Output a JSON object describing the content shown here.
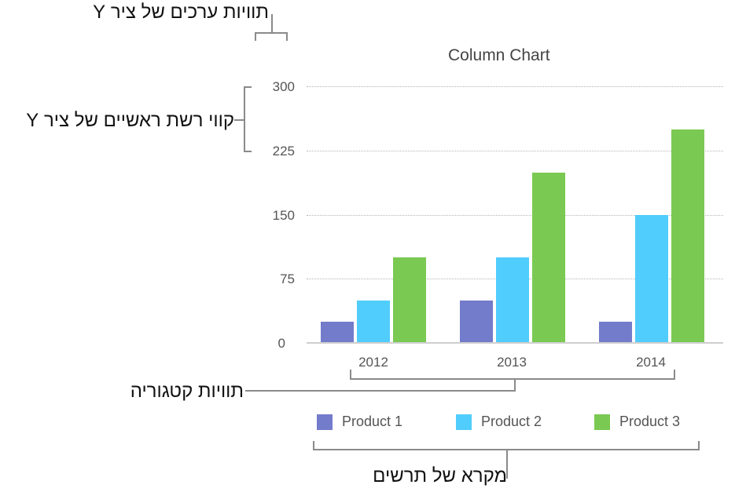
{
  "annotations": {
    "y_value_labels": "תוויות ערכים של ציר Y",
    "y_major_gridlines": "קווי רשת ראשיים של ציר Y",
    "category_labels": "תוויות קטגוריה",
    "legend": "מקרא של תרשים"
  },
  "colors": {
    "product1": "#737bcb",
    "product2": "#50cdfc",
    "product3": "#7ac952"
  },
  "chart_data": {
    "type": "bar",
    "title": "Column Chart",
    "categories": [
      "2012",
      "2013",
      "2014"
    ],
    "series": [
      {
        "name": "Product 1",
        "values": [
          25,
          50,
          25
        ]
      },
      {
        "name": "Product 2",
        "values": [
          50,
          100,
          150
        ]
      },
      {
        "name": "Product 3",
        "values": [
          100,
          200,
          250
        ]
      }
    ],
    "xlabel": "",
    "ylabel": "",
    "ylim": [
      0,
      300
    ],
    "yticks": [
      "300",
      "225",
      "150",
      "75",
      "0"
    ],
    "grid": true,
    "legend_position": "bottom"
  }
}
